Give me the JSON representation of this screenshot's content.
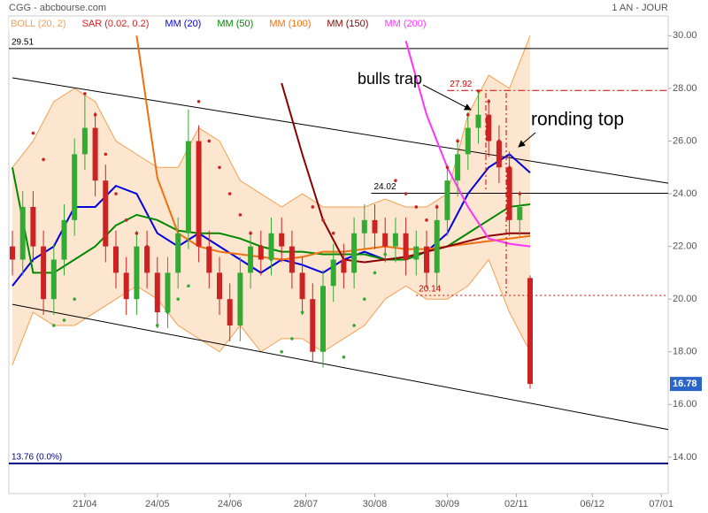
{
  "chart_data": {
    "type": "candlestick",
    "title": "CGG - abcbourse.com",
    "period": "1 AN - JOUR",
    "xlim": [
      0,
      190
    ],
    "xticks": [
      {
        "value": 21,
        "label": "21/04"
      },
      {
        "value": 42,
        "label": "24/05"
      },
      {
        "value": 63,
        "label": "24/06"
      },
      {
        "value": 85,
        "label": "28/07"
      },
      {
        "value": 105,
        "label": "30/08"
      },
      {
        "value": 126,
        "label": "30/09"
      },
      {
        "value": 146,
        "label": "02/11"
      },
      {
        "value": 168,
        "label": "06/12"
      },
      {
        "value": 188,
        "label": "07/01"
      }
    ],
    "ylim": [
      12.62,
      30.75
    ],
    "yticks": [
      {
        "value": 14,
        "label": "14.00"
      },
      {
        "value": 16,
        "label": "16.00"
      },
      {
        "value": 18,
        "label": "18.00"
      },
      {
        "value": 20,
        "label": "20.00"
      },
      {
        "value": 22,
        "label": "22.00"
      },
      {
        "value": 24,
        "label": "24.00"
      },
      {
        "value": 26,
        "label": "26.00"
      },
      {
        "value": 28,
        "label": "28.00"
      },
      {
        "value": 30,
        "label": "30.00"
      }
    ],
    "up_color": "#33aa33",
    "down_color": "#cc2222",
    "x": [
      0,
      3,
      6,
      9,
      12,
      15,
      18,
      21,
      24,
      27,
      30,
      33,
      36,
      39,
      42,
      45,
      48,
      51,
      54,
      57,
      60,
      63,
      66,
      69,
      72,
      75,
      78,
      81,
      84,
      87,
      90,
      93,
      96,
      99,
      102,
      105,
      108,
      111,
      114,
      117,
      120,
      123,
      126,
      129,
      132,
      135,
      138,
      141,
      144,
      147,
      150
    ],
    "open": [
      22.0,
      21.5,
      23.5,
      22.0,
      20.0,
      21.5,
      23.0,
      25.5,
      26.5,
      24.5,
      22.0,
      21.0,
      20.0,
      22.0,
      21.0,
      19.5,
      21.0,
      22.5,
      26.0,
      22.0,
      21.0,
      20.0,
      19.0,
      21.0,
      22.0,
      21.5,
      22.5,
      22.0,
      21.0,
      20.0,
      18.0,
      20.5,
      21.5,
      21.0,
      22.5,
      23.0,
      22.5,
      22.0,
      22.5,
      21.5,
      22.0,
      21.0,
      23.0,
      24.5,
      25.5,
      26.5,
      27.0,
      26.0,
      25.0,
      23.0,
      20.8
    ],
    "high": [
      22.6,
      24.1,
      24.1,
      22.6,
      22.1,
      23.6,
      26.1,
      27.8,
      27.1,
      25.1,
      22.6,
      21.6,
      22.6,
      22.6,
      21.6,
      21.6,
      23.1,
      27.2,
      26.6,
      22.6,
      21.6,
      20.6,
      21.6,
      22.6,
      22.6,
      23.1,
      23.1,
      22.6,
      21.6,
      20.6,
      21.1,
      22.1,
      22.1,
      23.1,
      23.6,
      23.6,
      23.1,
      23.1,
      23.1,
      22.6,
      22.6,
      23.6,
      25.1,
      26.1,
      27.1,
      27.92,
      27.6,
      26.6,
      25.6,
      24.1,
      20.9
    ],
    "low": [
      20.9,
      20.9,
      21.4,
      19.4,
      19.4,
      20.9,
      22.4,
      24.9,
      23.9,
      21.4,
      20.4,
      19.4,
      19.4,
      20.4,
      18.9,
      18.9,
      20.4,
      21.9,
      21.4,
      20.4,
      19.4,
      18.4,
      18.4,
      20.4,
      20.9,
      20.9,
      21.4,
      20.4,
      19.4,
      17.6,
      17.4,
      19.9,
      20.4,
      20.4,
      21.9,
      21.9,
      21.4,
      21.4,
      20.9,
      20.9,
      20.4,
      20.4,
      22.4,
      23.9,
      24.9,
      25.9,
      25.4,
      24.4,
      22.4,
      22.4,
      16.6
    ],
    "close": [
      21.5,
      23.5,
      22.0,
      20.0,
      21.5,
      23.0,
      25.5,
      26.5,
      24.5,
      22.0,
      21.0,
      20.0,
      22.0,
      21.0,
      19.5,
      21.0,
      22.5,
      26.0,
      22.0,
      21.0,
      20.0,
      19.0,
      21.0,
      22.0,
      21.5,
      22.5,
      22.0,
      21.0,
      20.0,
      18.0,
      20.5,
      21.5,
      21.0,
      22.5,
      23.0,
      22.5,
      22.0,
      22.5,
      21.5,
      22.0,
      21.0,
      23.0,
      24.5,
      25.5,
      26.5,
      27.0,
      26.0,
      25.0,
      23.0,
      23.5,
      16.78
    ],
    "last_price": 16.78,
    "bollinger": {
      "name": "BOLL (20, 2)",
      "color": "#f5a050",
      "fill": "#fde6d0",
      "upper": [
        25.0,
        26.0,
        27.5,
        28.0,
        27.5,
        26.0,
        25.5,
        25.0,
        25.0,
        26.5,
        26.0,
        24.5,
        24.0,
        23.5,
        24.0,
        23.5,
        23.5,
        23.5,
        23.8,
        23.5,
        23.5,
        24.0,
        27.0,
        28.5,
        28.0,
        30.0
      ],
      "lower": [
        17.5,
        19.5,
        19.0,
        19.0,
        19.5,
        20.0,
        20.5,
        20.0,
        19.0,
        18.5,
        18.0,
        19.0,
        18.0,
        18.5,
        18.5,
        18.0,
        18.5,
        19.0,
        20.0,
        20.5,
        20.0,
        20.0,
        20.5,
        21.5,
        19.5,
        18.0
      ]
    },
    "sar": {
      "name": "SAR (0.02, 0.2)",
      "color": "#cc2222",
      "below_color": "#33aa33",
      "values": [
        null,
        null,
        26.3,
        25.3,
        19.0,
        19.2,
        20.0,
        27.8,
        27.0,
        25.5,
        24.0,
        23.0,
        22.5,
        22.0,
        19.0,
        19.5,
        20.0,
        20.5,
        27.5,
        26.0,
        25.0,
        24.0,
        23.2,
        22.5,
        22.0,
        21.5,
        18.0,
        18.5,
        19.5,
        23.5,
        23.0,
        22.5,
        17.8,
        19.0,
        20.0,
        21.0,
        21.7,
        24.5,
        24.0,
        23.5,
        23.0,
        23.5,
        25.0,
        26.0,
        27.0,
        27.9,
        27.5,
        26.0,
        25.0,
        24.0,
        null
      ]
    },
    "indicators": {
      "x": [
        0,
        6,
        12,
        18,
        24,
        30,
        36,
        42,
        48,
        54,
        60,
        66,
        72,
        78,
        84,
        90,
        96,
        102,
        108,
        114,
        120,
        126,
        132,
        138,
        144,
        150
      ],
      "series": [
        {
          "name": "MM (20)",
          "color": "#0000dd",
          "values": [
            20.5,
            21.5,
            22.0,
            23.5,
            23.5,
            24.3,
            24.0,
            22.5,
            22.0,
            22.5,
            22.0,
            21.5,
            21.0,
            21.5,
            21.3,
            21.0,
            21.5,
            21.8,
            21.5,
            21.5,
            21.8,
            22.5,
            24.0,
            25.0,
            25.5,
            24.8
          ]
        },
        {
          "name": "MM (50)",
          "color": "#008800",
          "values": [
            25.0,
            21.0,
            21.0,
            21.5,
            22.0,
            22.8,
            23.2,
            23.0,
            22.6,
            22.5,
            22.5,
            22.3,
            22.0,
            21.8,
            21.8,
            21.7,
            21.7,
            21.7,
            21.5,
            21.5,
            21.8,
            22.0,
            22.5,
            23.0,
            23.5,
            23.6
          ]
        },
        {
          "name": "MM (100)",
          "color": "#f07010",
          "values": [
            null,
            null,
            null,
            null,
            null,
            null,
            30.0,
            24.6,
            22.5,
            22.0,
            21.8,
            21.7,
            21.6,
            21.5,
            21.6,
            21.8,
            21.8,
            21.9,
            22.0,
            21.9,
            21.9,
            22.0,
            22.1,
            22.2,
            22.3,
            22.4
          ]
        },
        {
          "name": "MM (150)",
          "color": "#8b0000",
          "values": [
            null,
            null,
            null,
            null,
            null,
            null,
            null,
            null,
            null,
            null,
            null,
            null,
            null,
            28.2,
            25.5,
            23.0,
            21.5,
            21.4,
            21.5,
            21.6,
            21.8,
            22.0,
            22.2,
            22.4,
            22.5,
            22.5
          ]
        },
        {
          "name": "MM (200)",
          "color": "#ff33ff",
          "values": [
            null,
            null,
            null,
            null,
            null,
            null,
            null,
            null,
            null,
            null,
            null,
            null,
            null,
            null,
            null,
            null,
            null,
            null,
            null,
            29.8,
            27.0,
            25.0,
            23.5,
            22.3,
            22.1,
            22.0
          ]
        }
      ]
    },
    "levels": [
      {
        "value": 29.51,
        "label": "29.51",
        "color": "#000000",
        "x_start": 0,
        "dash": "none"
      },
      {
        "value": 24.02,
        "label": "24.02",
        "color": "#000000",
        "x_start": 105,
        "dash": "none"
      },
      {
        "value": 27.92,
        "label": "27.92",
        "color": "#cc0000",
        "x_start": 127,
        "dash": "8 3 2 3"
      },
      {
        "value": 20.14,
        "label": "20.14",
        "color": "#cc0000",
        "x_start": 118,
        "dash": "2 3"
      },
      {
        "value": 13.76,
        "label": "13.76 (0.0%)",
        "color": "#000080",
        "x_start": 0,
        "dash": "none"
      }
    ],
    "trendlines": [
      {
        "x": [
          0,
          190
        ],
        "y": [
          28.4,
          24.4
        ]
      },
      {
        "x": [
          0,
          190
        ],
        "y": [
          19.8,
          15.05
        ]
      }
    ],
    "annotations": [
      "bulls trap",
      "ronding top"
    ]
  }
}
